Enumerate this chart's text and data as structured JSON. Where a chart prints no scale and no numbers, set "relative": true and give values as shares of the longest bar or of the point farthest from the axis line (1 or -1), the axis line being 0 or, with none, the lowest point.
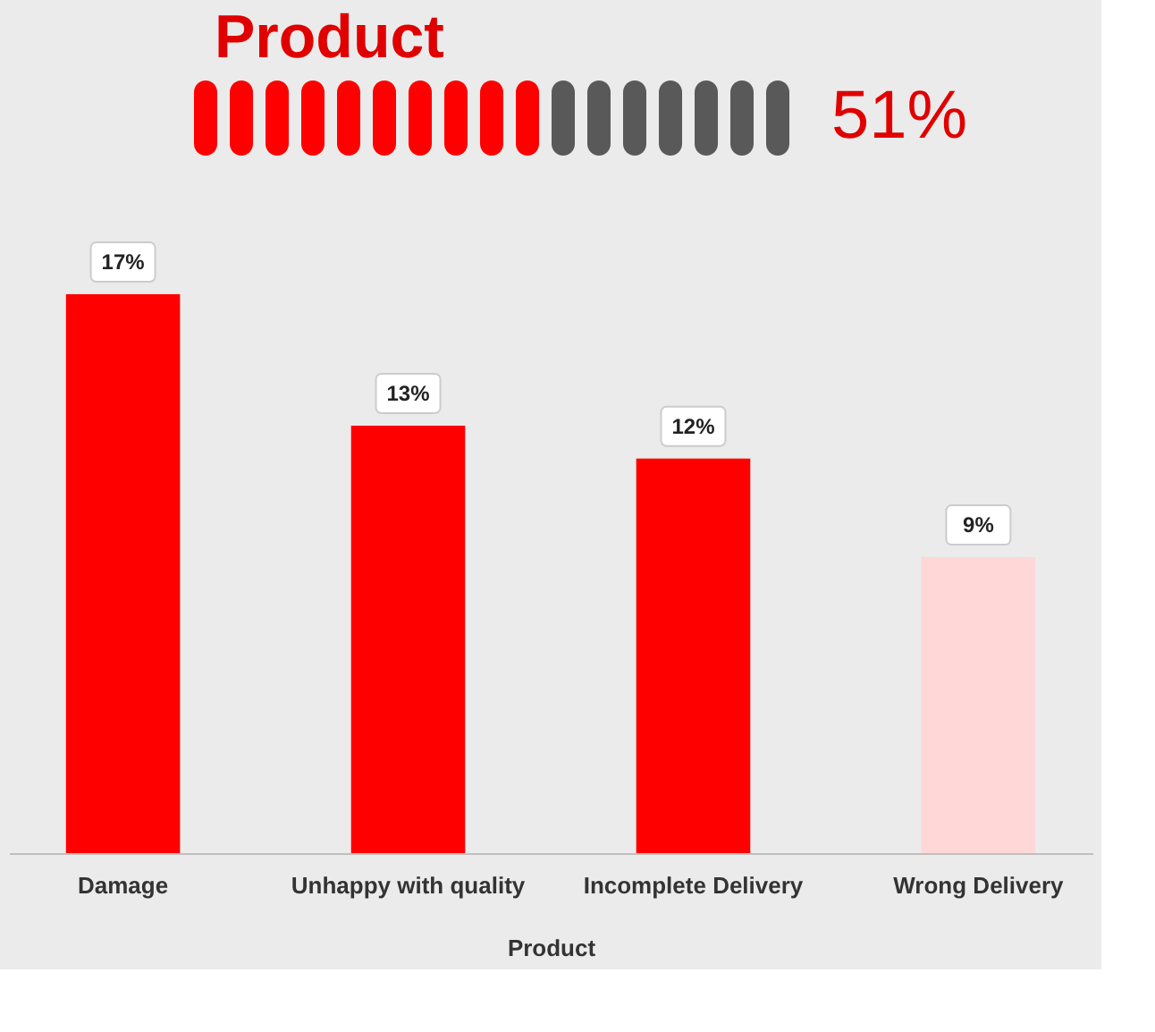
{
  "chart_data": [
    {
      "type": "bar",
      "relative": true,
      "title": "Product",
      "annotations": [
        "51%"
      ],
      "categories": [
        null,
        null,
        null,
        null,
        null,
        null,
        null,
        null,
        null,
        null,
        null,
        null,
        null,
        null,
        null,
        null,
        null
      ],
      "values": [
        1,
        1,
        1,
        1,
        1,
        1,
        1,
        1,
        1,
        1,
        1,
        1,
        1,
        1,
        1,
        1,
        1
      ],
      "colors": [
        "#ff0000",
        "#ff0000",
        "#ff0000",
        "#ff0000",
        "#ff0000",
        "#ff0000",
        "#ff0000",
        "#ff0000",
        "#ff0000",
        "#ff0000",
        "#595959",
        "#595959",
        "#595959",
        "#595959",
        "#595959",
        "#595959",
        "#595959"
      ]
    },
    {
      "type": "bar",
      "xlabel": "Product",
      "categories": [
        "Damage",
        "Unhappy with quality",
        "Incomplete Delivery",
        "Wrong Delivery"
      ],
      "values": [
        17,
        13,
        12,
        9
      ],
      "colors": [
        "#ff0000",
        "#ff0000",
        "#ff0000",
        "#ffd7d7"
      ],
      "value_labels": [
        "17%",
        "13%",
        "12%",
        "9%"
      ]
    }
  ]
}
